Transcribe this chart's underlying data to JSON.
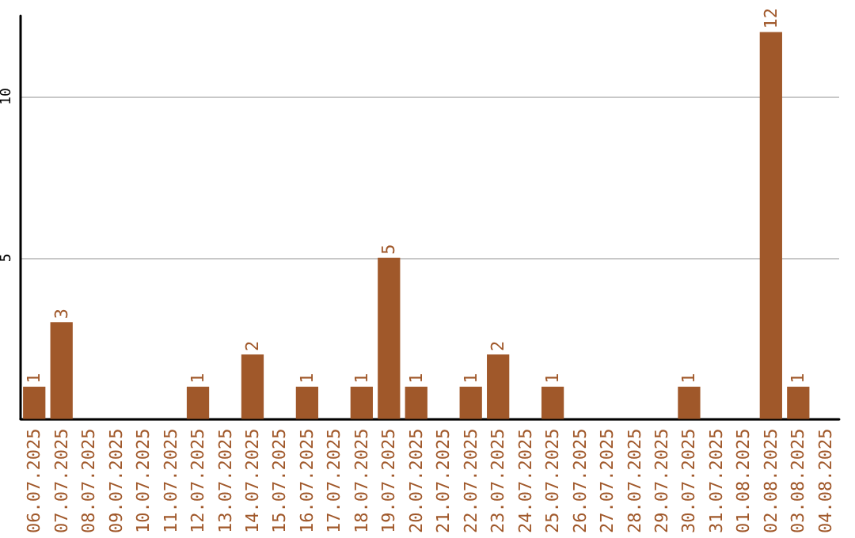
{
  "chart_data": {
    "type": "bar",
    "categories": [
      "06.07.2025",
      "07.07.2025",
      "08.07.2025",
      "09.07.2025",
      "10.07.2025",
      "11.07.2025",
      "12.07.2025",
      "13.07.2025",
      "14.07.2025",
      "15.07.2025",
      "16.07.2025",
      "17.07.2025",
      "18.07.2025",
      "19.07.2025",
      "20.07.2025",
      "21.07.2025",
      "22.07.2025",
      "23.07.2025",
      "24.07.2025",
      "25.07.2025",
      "26.07.2025",
      "27.07.2025",
      "28.07.2025",
      "29.07.2025",
      "30.07.2025",
      "31.07.2025",
      "01.08.2025",
      "02.08.2025",
      "03.08.2025",
      "04.08.2025"
    ],
    "values": [
      1,
      3,
      0,
      0,
      0,
      0,
      1,
      0,
      2,
      0,
      1,
      0,
      1,
      5,
      1,
      0,
      1,
      2,
      0,
      1,
      0,
      0,
      0,
      0,
      1,
      0,
      0,
      12,
      1,
      0
    ],
    "value_labels": [
      "1",
      "3",
      null,
      null,
      null,
      null,
      "1",
      null,
      "2",
      null,
      "1",
      null,
      "1",
      "5",
      "1",
      null,
      "1",
      "2",
      null,
      "1",
      null,
      null,
      null,
      null,
      "1",
      null,
      null,
      "12",
      "1",
      null
    ],
    "color": "#a0582a",
    "ylim": [
      0,
      12.5
    ],
    "yticks": [
      {
        "value": 0,
        "label": null
      },
      5,
      10
    ],
    "grid": "y"
  }
}
